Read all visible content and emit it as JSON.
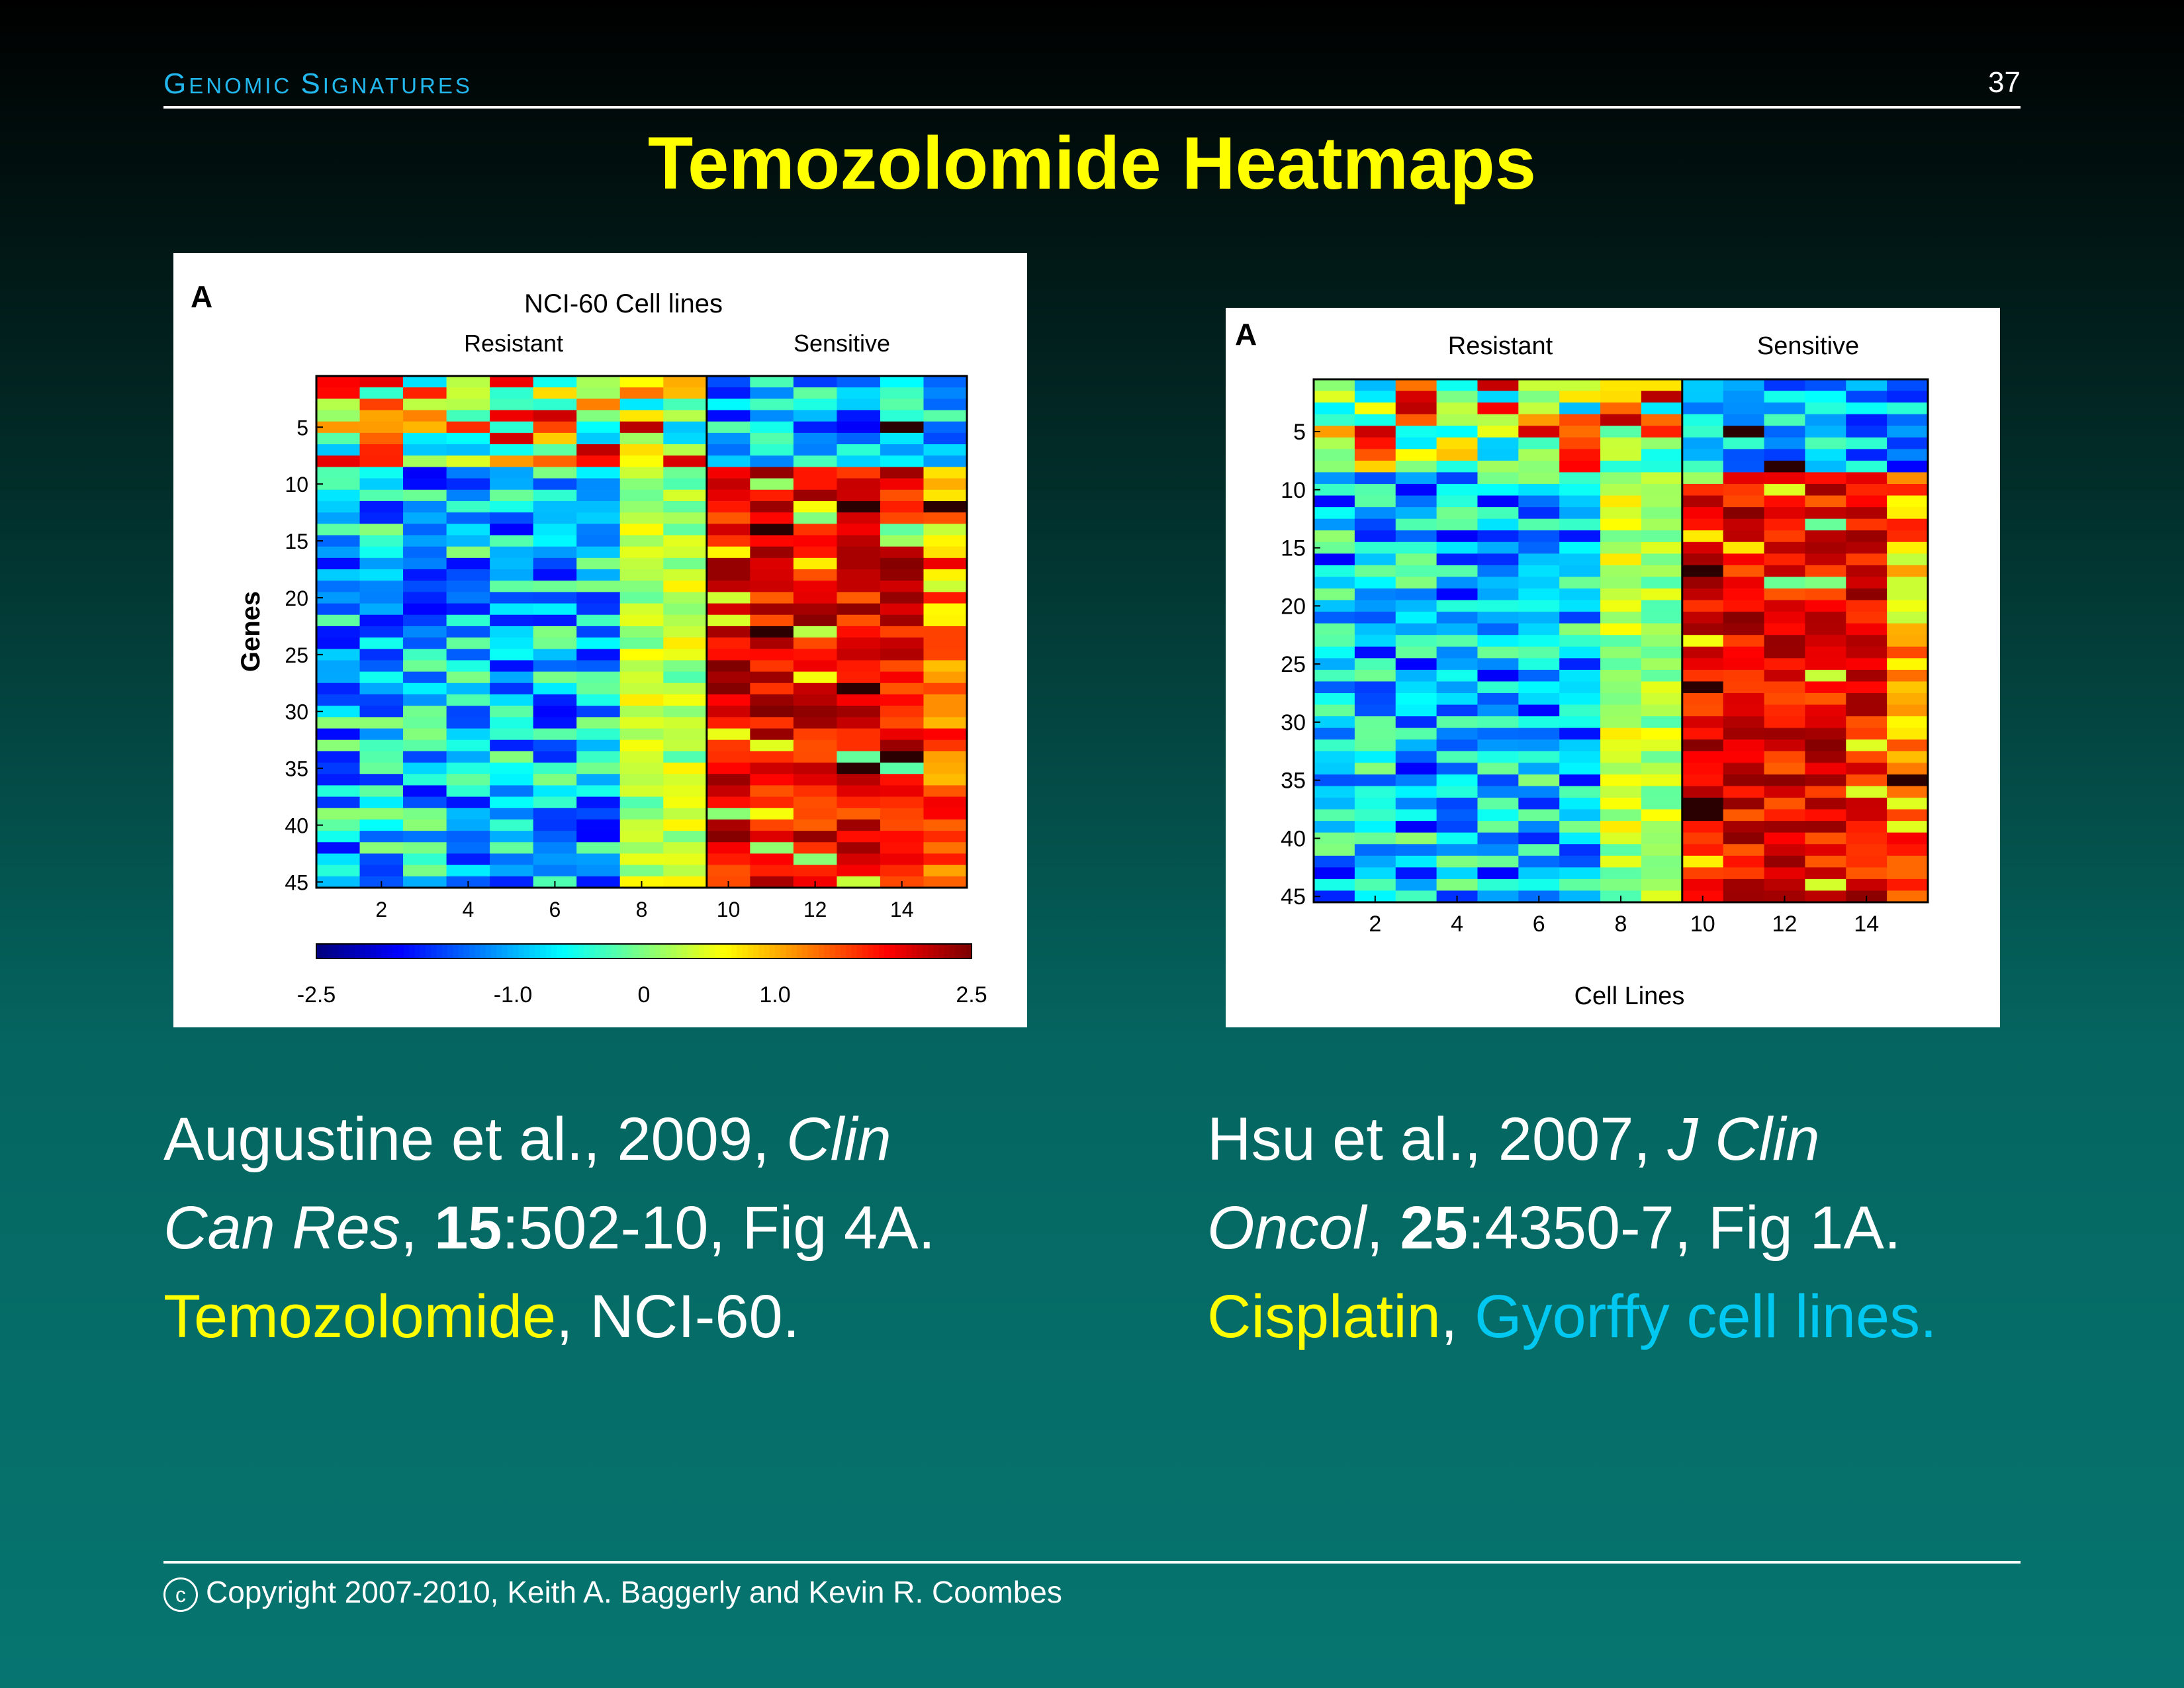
{
  "header": {
    "section_first": "G",
    "section_rest_1": "ENOMIC ",
    "section_second": "S",
    "section_rest_2": "IGNATURES",
    "page_number": "37"
  },
  "title": "Temozolomide Heatmaps",
  "left_citation": {
    "authors": "Augustine et al., 2009, ",
    "journal_1": "Clin",
    "journal_2": "Can Res",
    "comma": ", ",
    "volume": "15",
    "pages": ":502-10, Fig 4A.",
    "drug": "Temozolomide",
    "sep": ", ",
    "cells": "NCI-60."
  },
  "right_citation": {
    "authors": "Hsu et al., 2007, ",
    "journal_1": "J Clin",
    "journal_2": "Oncol",
    "comma": ", ",
    "volume": "25",
    "pages": ":4350-7, Fig 1A.",
    "drug": "Cisplatin",
    "sep": ", ",
    "cells": "Gyorffy cell lines."
  },
  "copyright": {
    "symbol": "c",
    "text": "Copyright 2007-2010, Keith A. Baggerly and Kevin R. Coombes"
  },
  "colors": {
    "title": "#ffff00",
    "header": "#22b8ee",
    "accent_cyan": "#00c8f0"
  },
  "chart_data": [
    {
      "type": "heatmap",
      "panel_label": "A",
      "title": "NCI-60 Cell lines",
      "group_labels": [
        "Resistant",
        "Sensitive"
      ],
      "ylabel": "Genes",
      "xlabel": "",
      "x_ticks": [
        2,
        4,
        6,
        8,
        10,
        12,
        14
      ],
      "y_ticks": [
        5,
        10,
        15,
        20,
        25,
        30,
        35,
        40,
        45
      ],
      "n_rows": 45,
      "n_cols": 15,
      "sensitive_start_col": 10,
      "colorbar": {
        "ticks": [
          "-2.5",
          "-1.0",
          "0",
          "1.0",
          "2.5"
        ],
        "range": [
          -2.5,
          2.5
        ]
      },
      "colormap": "jet"
    },
    {
      "type": "heatmap",
      "panel_label": "A",
      "title": "",
      "group_labels": [
        "Resistant",
        "Sensitive"
      ],
      "ylabel": "",
      "xlabel": "Cell Lines",
      "x_ticks": [
        2,
        4,
        6,
        8,
        10,
        12,
        14
      ],
      "y_ticks": [
        5,
        10,
        15,
        20,
        25,
        30,
        35,
        40,
        45
      ],
      "n_rows": 45,
      "n_cols": 15,
      "sensitive_start_col": 10,
      "colormap": "jet"
    }
  ]
}
